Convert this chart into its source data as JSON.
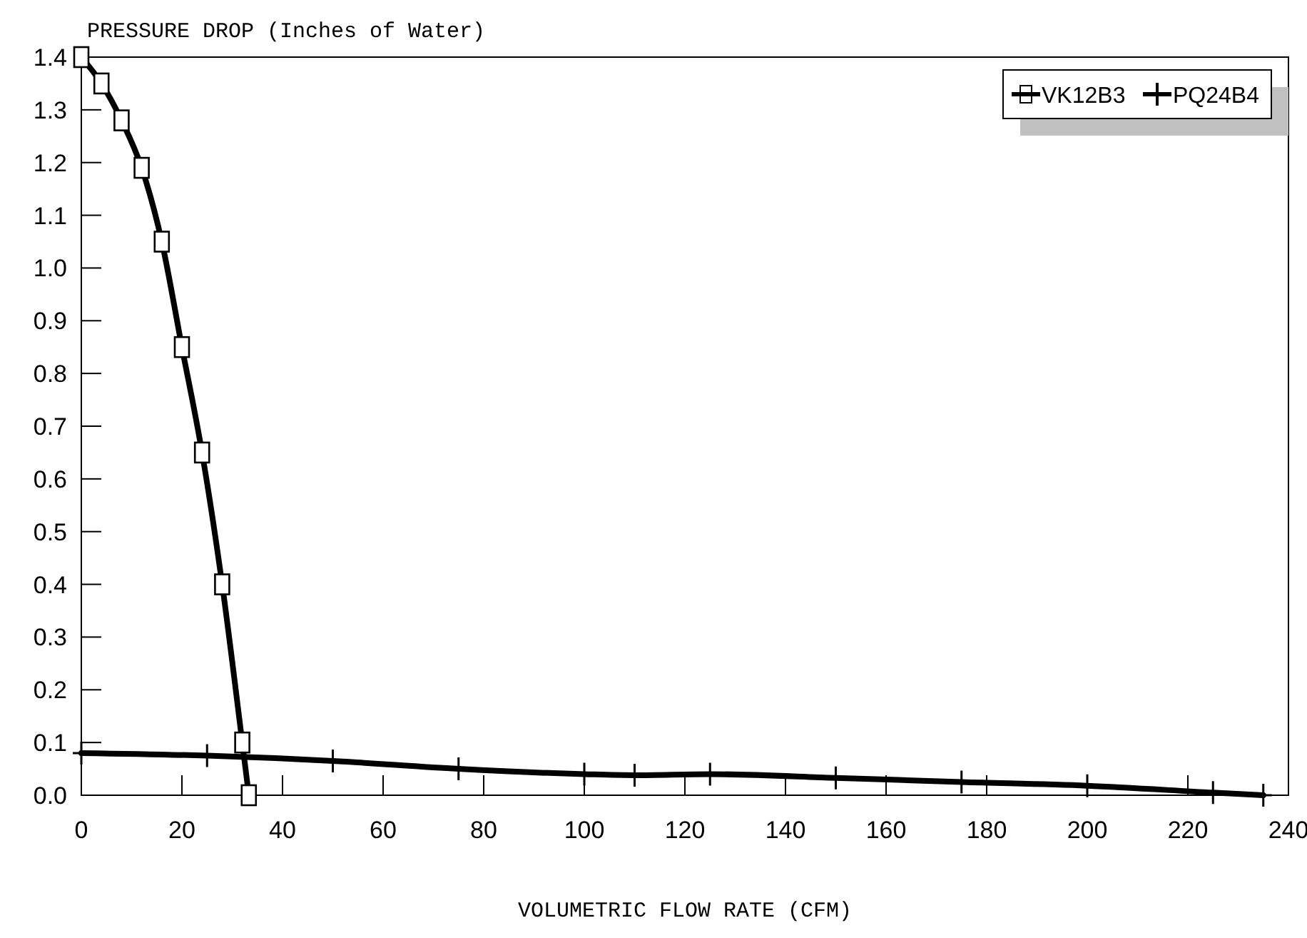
{
  "chart_data": {
    "type": "line",
    "title": "PRESSURE DROP (Inches of Water)",
    "xlabel": "VOLUMETRIC FLOW RATE (CFM)",
    "xlim": [
      0,
      240
    ],
    "xticks": [
      0,
      20,
      40,
      60,
      80,
      100,
      120,
      140,
      160,
      180,
      200,
      220,
      240
    ],
    "ylim": [
      0,
      1.4
    ],
    "yticks": [
      {
        "value": 0,
        "label": "0.0"
      },
      0.1,
      0.2,
      0.3,
      0.4,
      0.5,
      0.6,
      0.7,
      0.8,
      0.9,
      {
        "value": 1,
        "label": "1.0"
      },
      1.1,
      1.2,
      1.3,
      1.4
    ],
    "grid": false,
    "legend": "top right",
    "series": [
      {
        "name": "VK12B3",
        "color": "#000000",
        "marker": "square",
        "x": [
          0,
          4,
          8,
          12,
          16,
          20,
          24,
          28,
          32,
          33.3
        ],
        "values": [
          1.4,
          1.35,
          1.28,
          1.19,
          1.05,
          0.85,
          0.65,
          0.4,
          0.1,
          0.0
        ]
      },
      {
        "name": "PQ24B4",
        "color": "#000000",
        "marker": "cross",
        "x": [
          0,
          25,
          50,
          75,
          100,
          110,
          125,
          150,
          175,
          200,
          225,
          235
        ],
        "values": [
          0.08,
          0.075,
          0.065,
          0.05,
          0.04,
          0.038,
          0.04,
          0.033,
          0.025,
          0.018,
          0.005,
          0.0
        ]
      }
    ]
  }
}
